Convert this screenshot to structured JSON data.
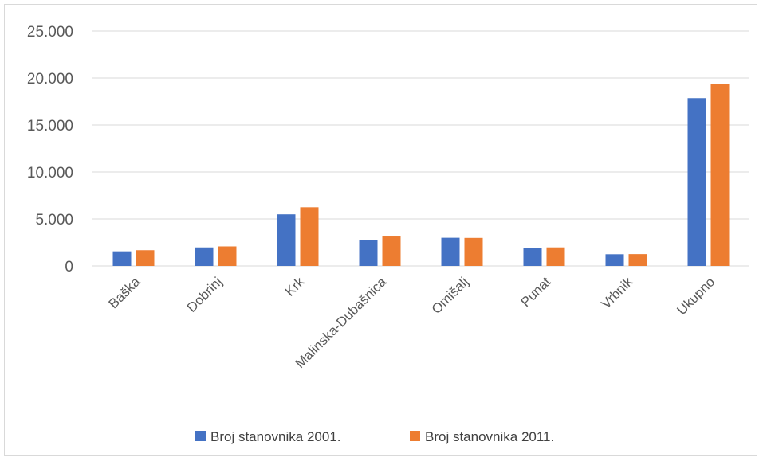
{
  "chart_data": {
    "type": "bar",
    "categories": [
      "Baška",
      "Dobrinj",
      "Krk",
      "Malinska-Dubašnica",
      "Omišalj",
      "Punat",
      "Vrbnik",
      "Ukupno"
    ],
    "series": [
      {
        "name": "Broj stanovnika 2001.",
        "color": "#4472c4",
        "values": [
          1554,
          1970,
          5491,
          2726,
          2998,
          1876,
          1245,
          17860
        ]
      },
      {
        "name": "Broj stanovnika 2011.",
        "color": "#ed7d31",
        "values": [
          1674,
          2078,
          6243,
          3134,
          2983,
          1973,
          1260,
          19345
        ]
      }
    ],
    "yticks": [
      "0",
      "5.000",
      "10.000",
      "15.000",
      "20.000",
      "25.000"
    ],
    "ylim": [
      0,
      25000
    ],
    "grid": true,
    "legend": "bottom"
  }
}
